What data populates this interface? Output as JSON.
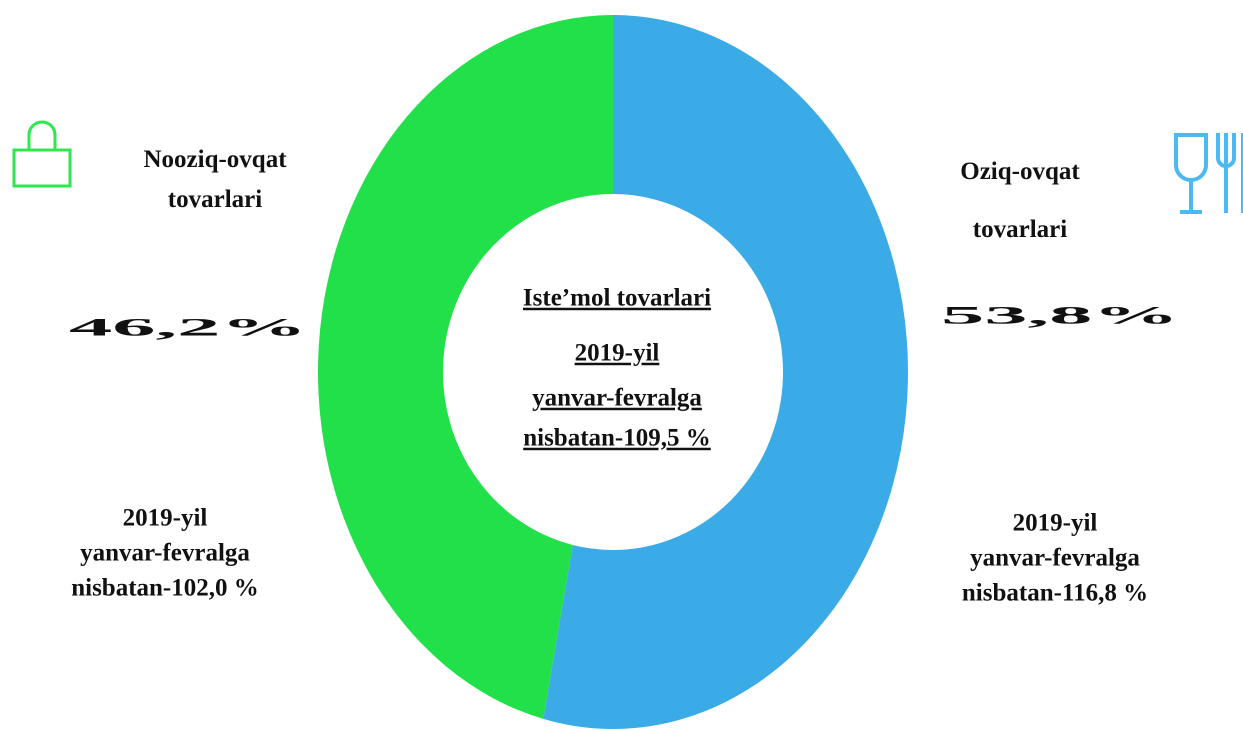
{
  "chart_data": {
    "type": "pie",
    "categories": [
      "Oziq-ovqat tovarlari",
      "Nooziq-ovqat tovarlari"
    ],
    "values": [
      53.8,
      46.2
    ],
    "value_labels": [
      "53,8%",
      "46,2%"
    ],
    "colors": [
      "#3aabe6",
      "#22e04a"
    ],
    "label_colors": [
      "#4cb9f2",
      "#2ee84e"
    ],
    "donut": true,
    "center_text": [
      "Iste’mol tovarlari",
      "2019-yil",
      "yanvar-fevralga",
      "nisbatan-109,5 %"
    ],
    "notes": [
      [
        "2019-yil",
        "yanvar-fevralga",
        "nisbatan-116,8 %"
      ],
      [
        "2019-yil",
        "yanvar-fevralga",
        "nisbatan-102,0 %"
      ]
    ]
  }
}
